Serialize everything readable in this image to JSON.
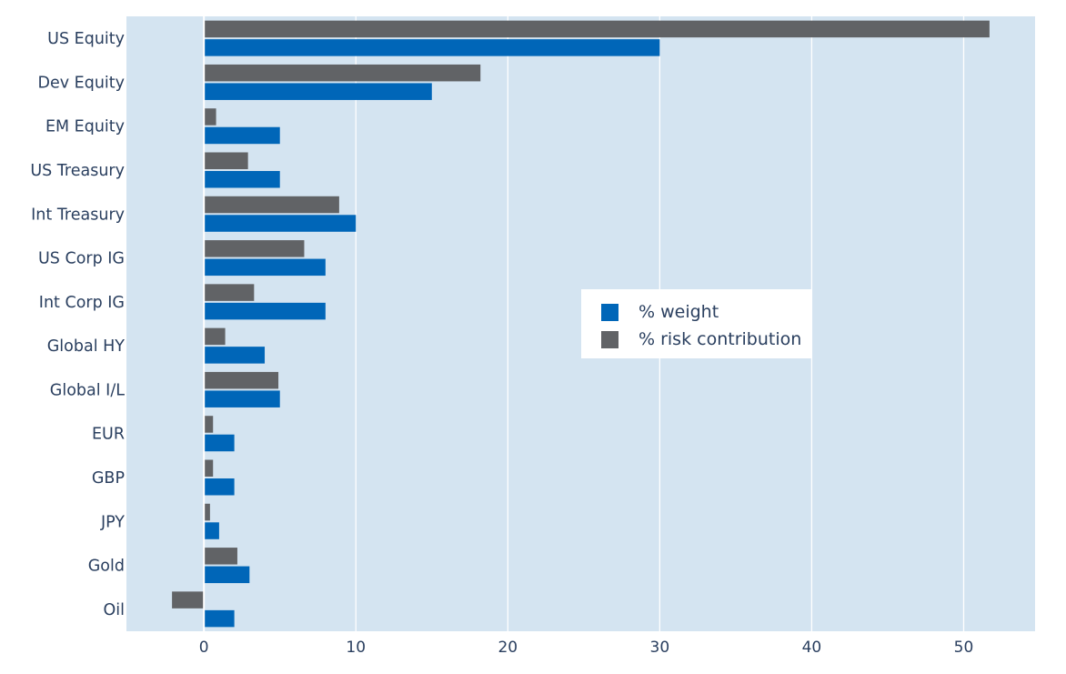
{
  "colors": {
    "plot_bg": "#d4e4f1",
    "grid": "#ffffff",
    "weight": "#0066b8",
    "risk": "#616366",
    "text": "#2a3f5f"
  },
  "legend": {
    "placement": "center-right",
    "items": [
      {
        "label": "% weight",
        "color": "#0066b8"
      },
      {
        "label": "% risk contribution",
        "color": "#616366"
      }
    ]
  },
  "chart_data": {
    "type": "bar",
    "orientation": "horizontal",
    "categories": [
      "US Equity",
      "Dev Equity",
      "EM Equity",
      "US Treasury",
      "Int Treasury",
      "US Corp IG",
      "Int Corp IG",
      "Global HY",
      "Global I/L",
      "EUR",
      "GBP",
      "JPY",
      "Gold",
      "Oil"
    ],
    "series": [
      {
        "name": "% weight",
        "color": "#0066b8",
        "values": [
          30,
          15,
          5,
          5,
          10,
          8,
          8,
          4,
          5,
          2,
          2,
          1,
          3,
          2
        ]
      },
      {
        "name": "% risk contribution",
        "color": "#616366",
        "values": [
          51.7,
          18.2,
          0.8,
          2.9,
          8.9,
          6.6,
          3.3,
          1.4,
          4.9,
          0.6,
          0.6,
          0.4,
          2.2,
          -2.1
        ]
      }
    ],
    "x_ticks": [
      0,
      10,
      20,
      30,
      40,
      50
    ],
    "xlim": [
      -5.1,
      54.7
    ],
    "grid": true
  }
}
